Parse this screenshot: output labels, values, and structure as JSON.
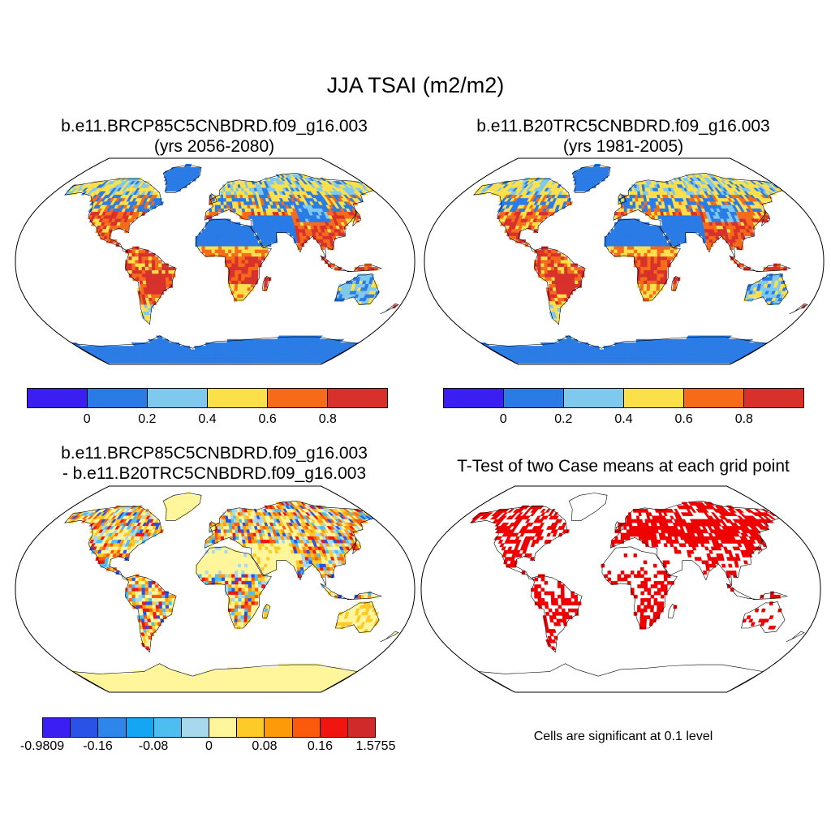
{
  "main_title": "JJA TSAI (m2/m2)",
  "panels": [
    {
      "title_line1": "b.e11.BRCP85C5CNBDRD.f09_g16.003",
      "title_line2": "(yrs 2056-2080)",
      "colorbar": {
        "colors": [
          "#3a1ef2",
          "#2a7be6",
          "#7fc8ee",
          "#fbe04a",
          "#f56b1a",
          "#d8312b"
        ],
        "ticks": [
          "0",
          "0.2",
          "0.4",
          "0.6",
          "0.8"
        ]
      }
    },
    {
      "title_line1": "b.e11.B20TRC5CNBDRD.f09_g16.003",
      "title_line2": "(yrs 1981-2005)",
      "colorbar": {
        "colors": [
          "#3a1ef2",
          "#2a7be6",
          "#7fc8ee",
          "#fbe04a",
          "#f56b1a",
          "#d8312b"
        ],
        "ticks": [
          "0",
          "0.2",
          "0.4",
          "0.6",
          "0.8"
        ]
      }
    },
    {
      "title_line1": "b.e11.BRCP85C5CNBDRD.f09_g16.003",
      "title_line2": "- b.e11.B20TRC5CNBDRD.f09_g16.003",
      "colorbar": {
        "colors": [
          "#3a1ef2",
          "#2a52e6",
          "#2f86ea",
          "#14a6f2",
          "#4cbff0",
          "#a8d8ee",
          "#fff59a",
          "#fccb28",
          "#fc9a0a",
          "#fb5a0c",
          "#f01510",
          "#d02a2a"
        ],
        "ticks": [
          "-0.9809",
          "-0.16",
          "-0.08",
          "0",
          "0.08",
          "0.16",
          "1.5755"
        ]
      }
    },
    {
      "title_line1": "T-Test of two Case means at each grid point",
      "note": "Cells are significant at 0.1 level",
      "significance_color": "#ee0000"
    }
  ]
}
